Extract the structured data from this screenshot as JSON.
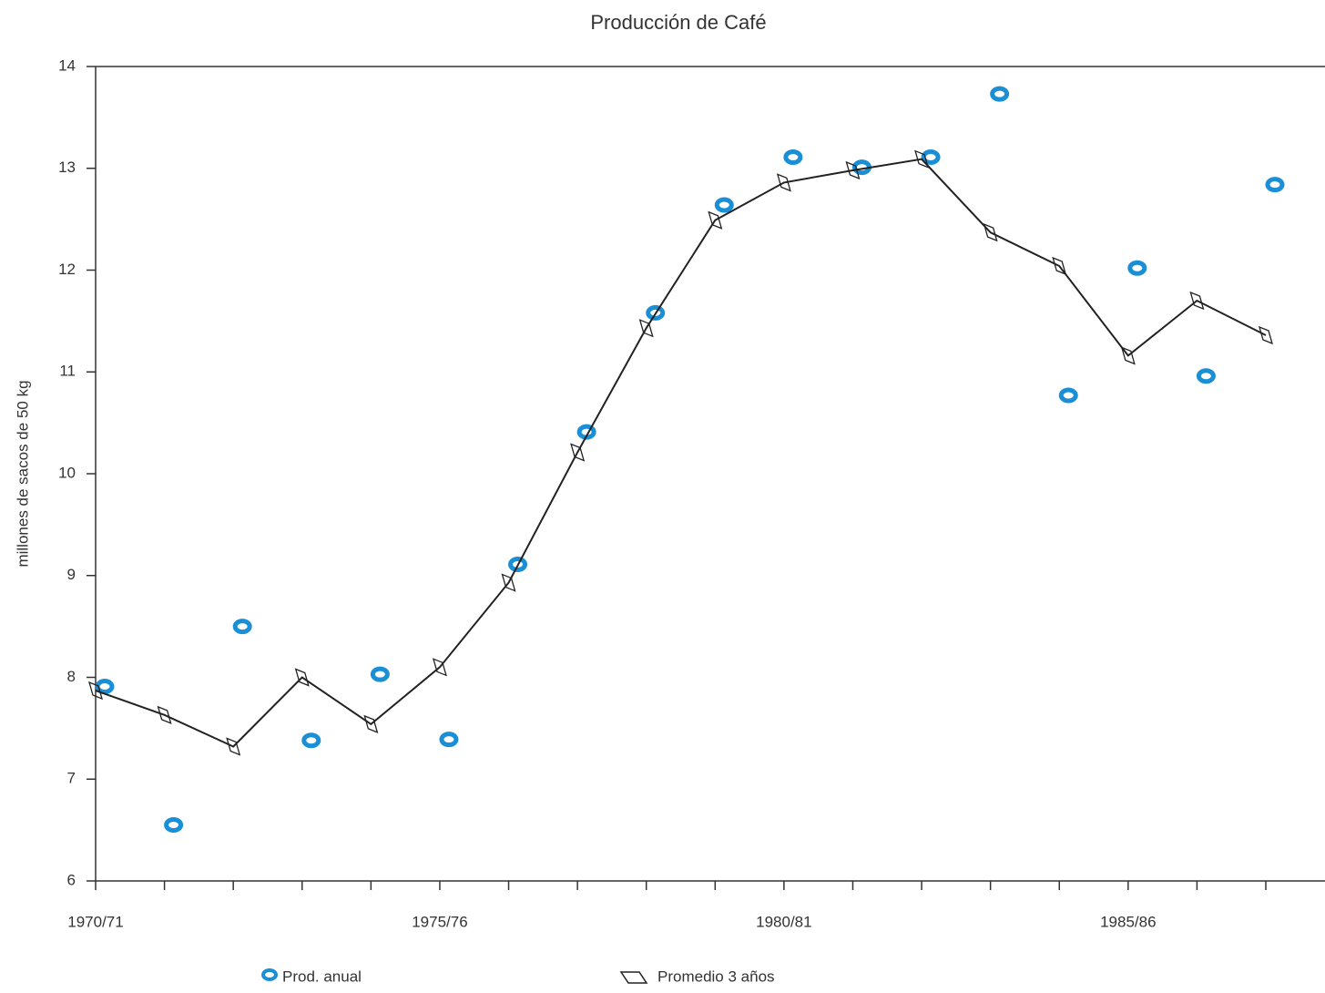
{
  "chart_data": {
    "type": "line",
    "title": "Producción de Café",
    "y_label": "millones de sacos de 50 kg",
    "categories": [
      "1970/71",
      null,
      null,
      null,
      null,
      "1975/76",
      null,
      null,
      null,
      null,
      "1980/81",
      null,
      null,
      null,
      null,
      "1985/86",
      null,
      null
    ],
    "series": [
      {
        "name": "Prod. anual",
        "type": "scatter",
        "color": "#1a8fd6",
        "values": [
          7.91,
          6.55,
          8.5,
          7.38,
          8.03,
          7.39,
          9.11,
          10.41,
          11.58,
          12.64,
          13.11,
          13.01,
          13.11,
          13.73,
          10.77,
          12.02,
          10.96,
          12.84
        ]
      },
      {
        "name": "Promedio 3 años",
        "type": "line",
        "color": "#222222",
        "values": [
          7.87,
          7.63,
          7.32,
          8.0,
          7.54,
          8.1,
          8.93,
          10.21,
          11.43,
          12.49,
          12.86,
          12.98,
          13.09,
          12.37,
          12.04,
          11.16,
          11.7,
          11.36
        ]
      }
    ],
    "ylim": [
      6,
      14
    ],
    "yticks": [
      6,
      7,
      8,
      9,
      10,
      11,
      12,
      13,
      14
    ],
    "grid": false
  }
}
